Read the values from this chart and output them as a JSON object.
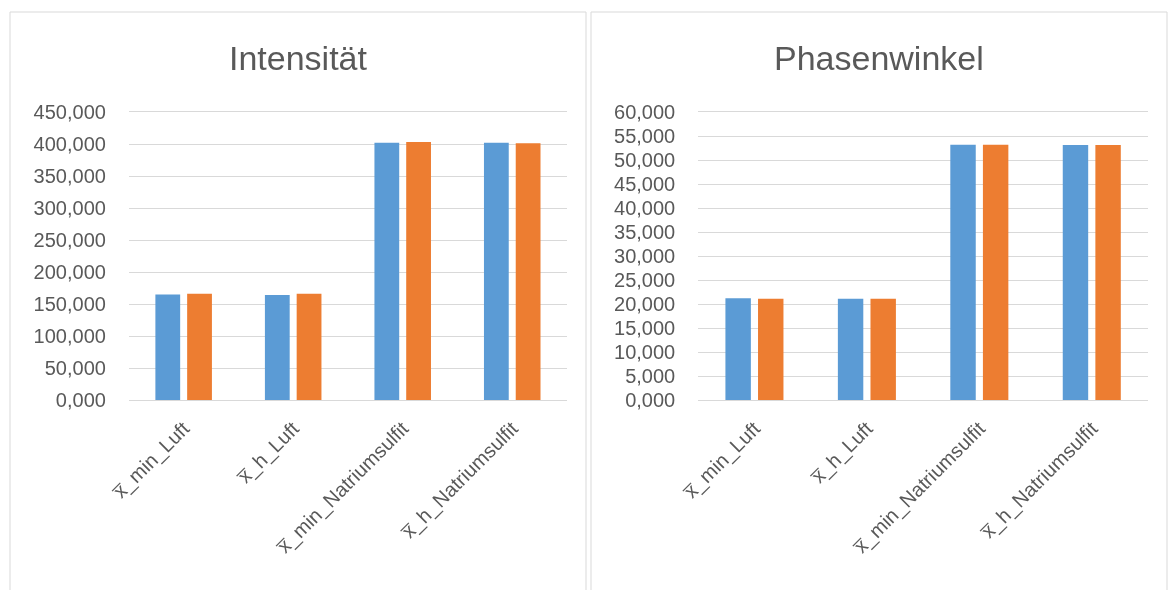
{
  "chart_data": [
    {
      "type": "bar",
      "title": "Intensität",
      "categories": [
        "x̅_min_Luft",
        "x̅_h_Luft",
        "x̅_min_Natriumsulfit",
        "x̅_h_Natriumsulfit"
      ],
      "series": [
        {
          "color": "#5b9bd5",
          "values": [
            165,
            164,
            402,
            402
          ]
        },
        {
          "color": "#ed7d31",
          "values": [
            166,
            166,
            403,
            401
          ]
        }
      ],
      "ylim": [
        0,
        450
      ],
      "yticks": [
        {
          "value": 0,
          "label": "0,000"
        },
        {
          "value": 50,
          "label": "50,000"
        },
        {
          "value": 100,
          "label": "100,000"
        },
        {
          "value": 150,
          "label": "150,000"
        },
        {
          "value": 200,
          "label": "200,000"
        },
        {
          "value": 250,
          "label": "250,000"
        },
        {
          "value": 300,
          "label": "300,000"
        },
        {
          "value": 350,
          "label": "350,000"
        },
        {
          "value": 400,
          "label": "400,000"
        },
        {
          "value": 450,
          "label": "450,000"
        }
      ],
      "grid": "y"
    },
    {
      "type": "bar",
      "title": "Phasenwinkel",
      "categories": [
        "x̅_min_Luft",
        "x̅_h_Luft",
        "x̅_min_Natriumsulfit",
        "x̅_h_Natriumsulfit"
      ],
      "series": [
        {
          "color": "#5b9bd5",
          "values": [
            21.2,
            21.1,
            53.2,
            53.1
          ]
        },
        {
          "color": "#ed7d31",
          "values": [
            21.1,
            21.1,
            53.2,
            53.1
          ]
        }
      ],
      "ylim": [
        0,
        60
      ],
      "yticks": [
        {
          "value": 0,
          "label": "0,000"
        },
        {
          "value": 5,
          "label": "5,000"
        },
        {
          "value": 10,
          "label": "10,000"
        },
        {
          "value": 15,
          "label": "15,000"
        },
        {
          "value": 20,
          "label": "20,000"
        },
        {
          "value": 25,
          "label": "25,000"
        },
        {
          "value": 30,
          "label": "30,000"
        },
        {
          "value": 35,
          "label": "35,000"
        },
        {
          "value": 40,
          "label": "40,000"
        },
        {
          "value": 45,
          "label": "45,000"
        },
        {
          "value": 50,
          "label": "50,000"
        },
        {
          "value": 55,
          "label": "55,000"
        },
        {
          "value": 60,
          "label": "60,000"
        }
      ],
      "grid": "y"
    }
  ]
}
